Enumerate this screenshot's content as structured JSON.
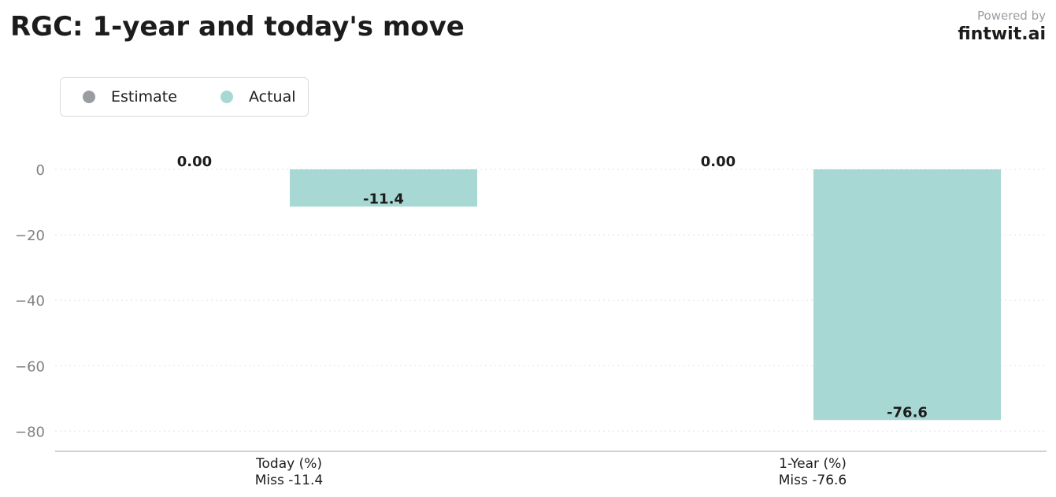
{
  "header": {
    "title": "RGC: 1-year and today's move",
    "powered_by": "Powered by",
    "brand": "fintwit.ai"
  },
  "colors": {
    "estimate": "#999da3",
    "actual": "#a8d8d3",
    "text": "#1c1c1c",
    "tick": "#808080",
    "grid": "#e6e6e6",
    "axis": "#bfbfbf"
  },
  "chart_data": {
    "type": "bar",
    "title": "RGC: 1-year and today's move",
    "categories": [
      "Today (%)",
      "1-Year (%)"
    ],
    "category_sublabels": [
      "Miss -11.4",
      "Miss -76.6"
    ],
    "series": [
      {
        "name": "Estimate",
        "values": [
          0.0,
          0.0
        ],
        "labels": [
          "0.00",
          "0.00"
        ],
        "color": "#999da3"
      },
      {
        "name": "Actual",
        "values": [
          -11.4,
          -76.6
        ],
        "labels": [
          "-11.4",
          "-76.6"
        ],
        "color": "#a8d8d3"
      }
    ],
    "yticks": [
      0,
      -20,
      -40,
      -60,
      -80
    ],
    "ytick_labels": [
      "0",
      "−20",
      "−40",
      "−60",
      "−80"
    ],
    "ylim": [
      -86,
      0
    ],
    "grid": true,
    "legend_position": "top-left"
  }
}
